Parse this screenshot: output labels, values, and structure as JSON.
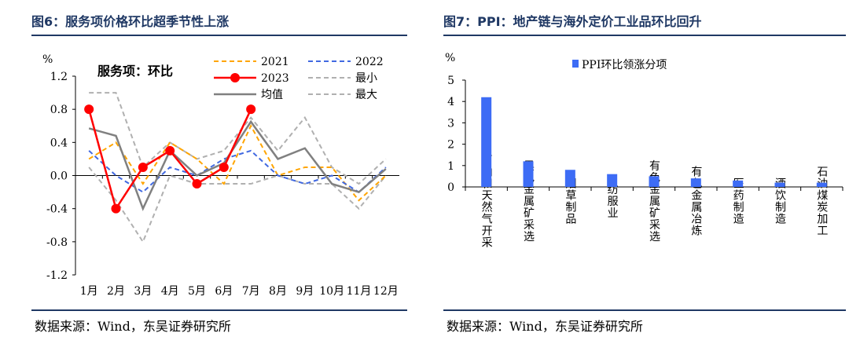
{
  "figures": [
    {
      "title": "图6：服务项价格环比超季节性上涨",
      "source": "数据来源：Wind，东吴证券研究所"
    },
    {
      "title": "图7：PPI：地产链与海外定价工业品环比回升",
      "source": "数据来源：Wind，东吴证券研究所"
    }
  ],
  "chart_data": [
    {
      "type": "line",
      "annotation": "服务项：环比",
      "unit": "%",
      "categories": [
        "1月",
        "2月",
        "3月",
        "4月",
        "5月",
        "6月",
        "7月",
        "8月",
        "9月",
        "10月",
        "11月",
        "12月"
      ],
      "ylim": [
        -1.2,
        1.2
      ],
      "yticks": [
        "1.2",
        "0.8",
        "0.4",
        "0.0",
        "-0.4",
        "-0.8",
        "-1.2"
      ],
      "ytick_values": [
        1.2,
        0.8,
        0.4,
        0.0,
        -0.4,
        -0.8,
        -1.2
      ],
      "grid": false,
      "legend_position": "top-right",
      "series": [
        {
          "name": "2021",
          "color": "#ffa500",
          "style": "dashed",
          "values": [
            0.2,
            0.4,
            -0.1,
            0.4,
            0.2,
            -0.1,
            0.6,
            0.0,
            0.1,
            0.1,
            -0.3,
            0.0
          ]
        },
        {
          "name": "2022",
          "color": "#4169e1",
          "style": "dashed",
          "values": [
            0.3,
            0.0,
            -0.2,
            0.1,
            0.0,
            0.2,
            0.3,
            0.0,
            -0.1,
            0.0,
            -0.2,
            0.1
          ]
        },
        {
          "name": "2023",
          "color": "#ff0000",
          "style": "solid-markers",
          "values": [
            0.8,
            -0.4,
            0.1,
            0.3,
            -0.1,
            0.1,
            0.8,
            null,
            null,
            null,
            null,
            null
          ]
        },
        {
          "name": "最小",
          "color": "#b0b0b0",
          "style": "dashed",
          "values": [
            0.1,
            -0.3,
            -0.8,
            0.0,
            -0.1,
            -0.1,
            -0.1,
            0.0,
            -0.1,
            -0.1,
            -0.4,
            0.0
          ]
        },
        {
          "name": "均值",
          "color": "#808080",
          "style": "solid",
          "values": [
            0.57,
            0.48,
            -0.4,
            0.3,
            0.0,
            0.15,
            0.65,
            0.2,
            0.33,
            -0.1,
            -0.2,
            0.08
          ]
        },
        {
          "name": "最大",
          "color": "#b0b0b0",
          "style": "dashed",
          "values": [
            1.0,
            1.0,
            0.1,
            0.4,
            0.2,
            0.3,
            0.7,
            0.3,
            0.7,
            0.1,
            -0.1,
            0.2
          ]
        }
      ]
    },
    {
      "type": "bar",
      "unit": "%",
      "categories": [
        "石油和天然气开采",
        "黑色金属矿采选",
        "烟草制品",
        "纺服业",
        "有色金属矿采选",
        "有色金属冶炼",
        "医药制造",
        "酒饮制造",
        "石油煤炭加工"
      ],
      "series": [
        {
          "name": "PPI环比领涨分项",
          "color": "#3d6cf5",
          "values": [
            4.2,
            1.2,
            0.8,
            0.6,
            0.5,
            0.4,
            0.3,
            0.2,
            0.2
          ]
        }
      ],
      "ylim": [
        0,
        5
      ],
      "yticks": [
        "5",
        "4",
        "3",
        "2",
        "1",
        "0"
      ],
      "ytick_values": [
        5,
        4,
        3,
        2,
        1,
        0
      ],
      "grid": false,
      "legend_position": "top"
    }
  ]
}
